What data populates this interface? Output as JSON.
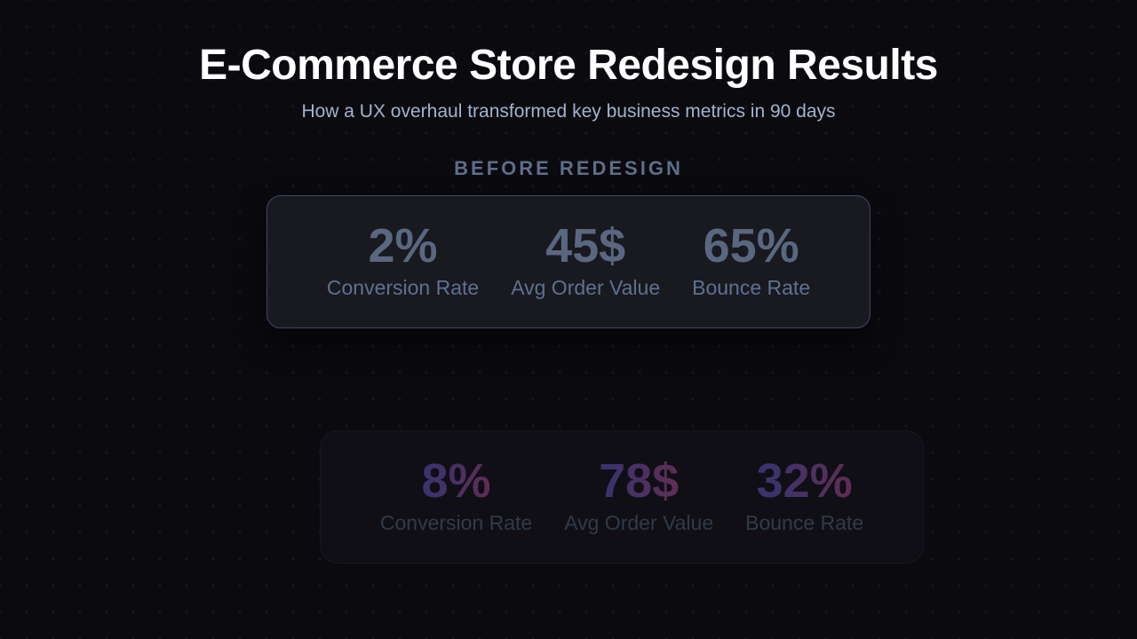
{
  "page": {
    "title": "E-Commerce Store Redesign Results",
    "subtitle": "How a UX overhaul transformed key business metrics in 90 days"
  },
  "before": {
    "heading": "BEFORE REDESIGN",
    "metrics": [
      {
        "value": "2%",
        "label": "Conversion Rate"
      },
      {
        "value": "45$",
        "label": "Avg Order Value"
      },
      {
        "value": "65%",
        "label": "Bounce Rate"
      }
    ]
  },
  "after": {
    "metrics": [
      {
        "value": "8%",
        "label": "Conversion Rate"
      },
      {
        "value": "78$",
        "label": "Avg Order Value"
      },
      {
        "value": "32%",
        "label": "Bounce Rate"
      }
    ]
  },
  "colors": {
    "background": "#0a0a0f",
    "background_dot": "#17171f",
    "title": "#ffffff",
    "subtitle": "#a4b3cd",
    "section_heading": "#5d6e8a",
    "before_card_background": "#191920",
    "before_card_border": "#414768",
    "before_value": "#5a6780",
    "before_label": "#5f7192",
    "after_card_background": "#0f0f15",
    "after_value_gradient_start": "#3a336e",
    "after_value_gradient_end": "#5e2d55",
    "after_label": "#323a48"
  }
}
